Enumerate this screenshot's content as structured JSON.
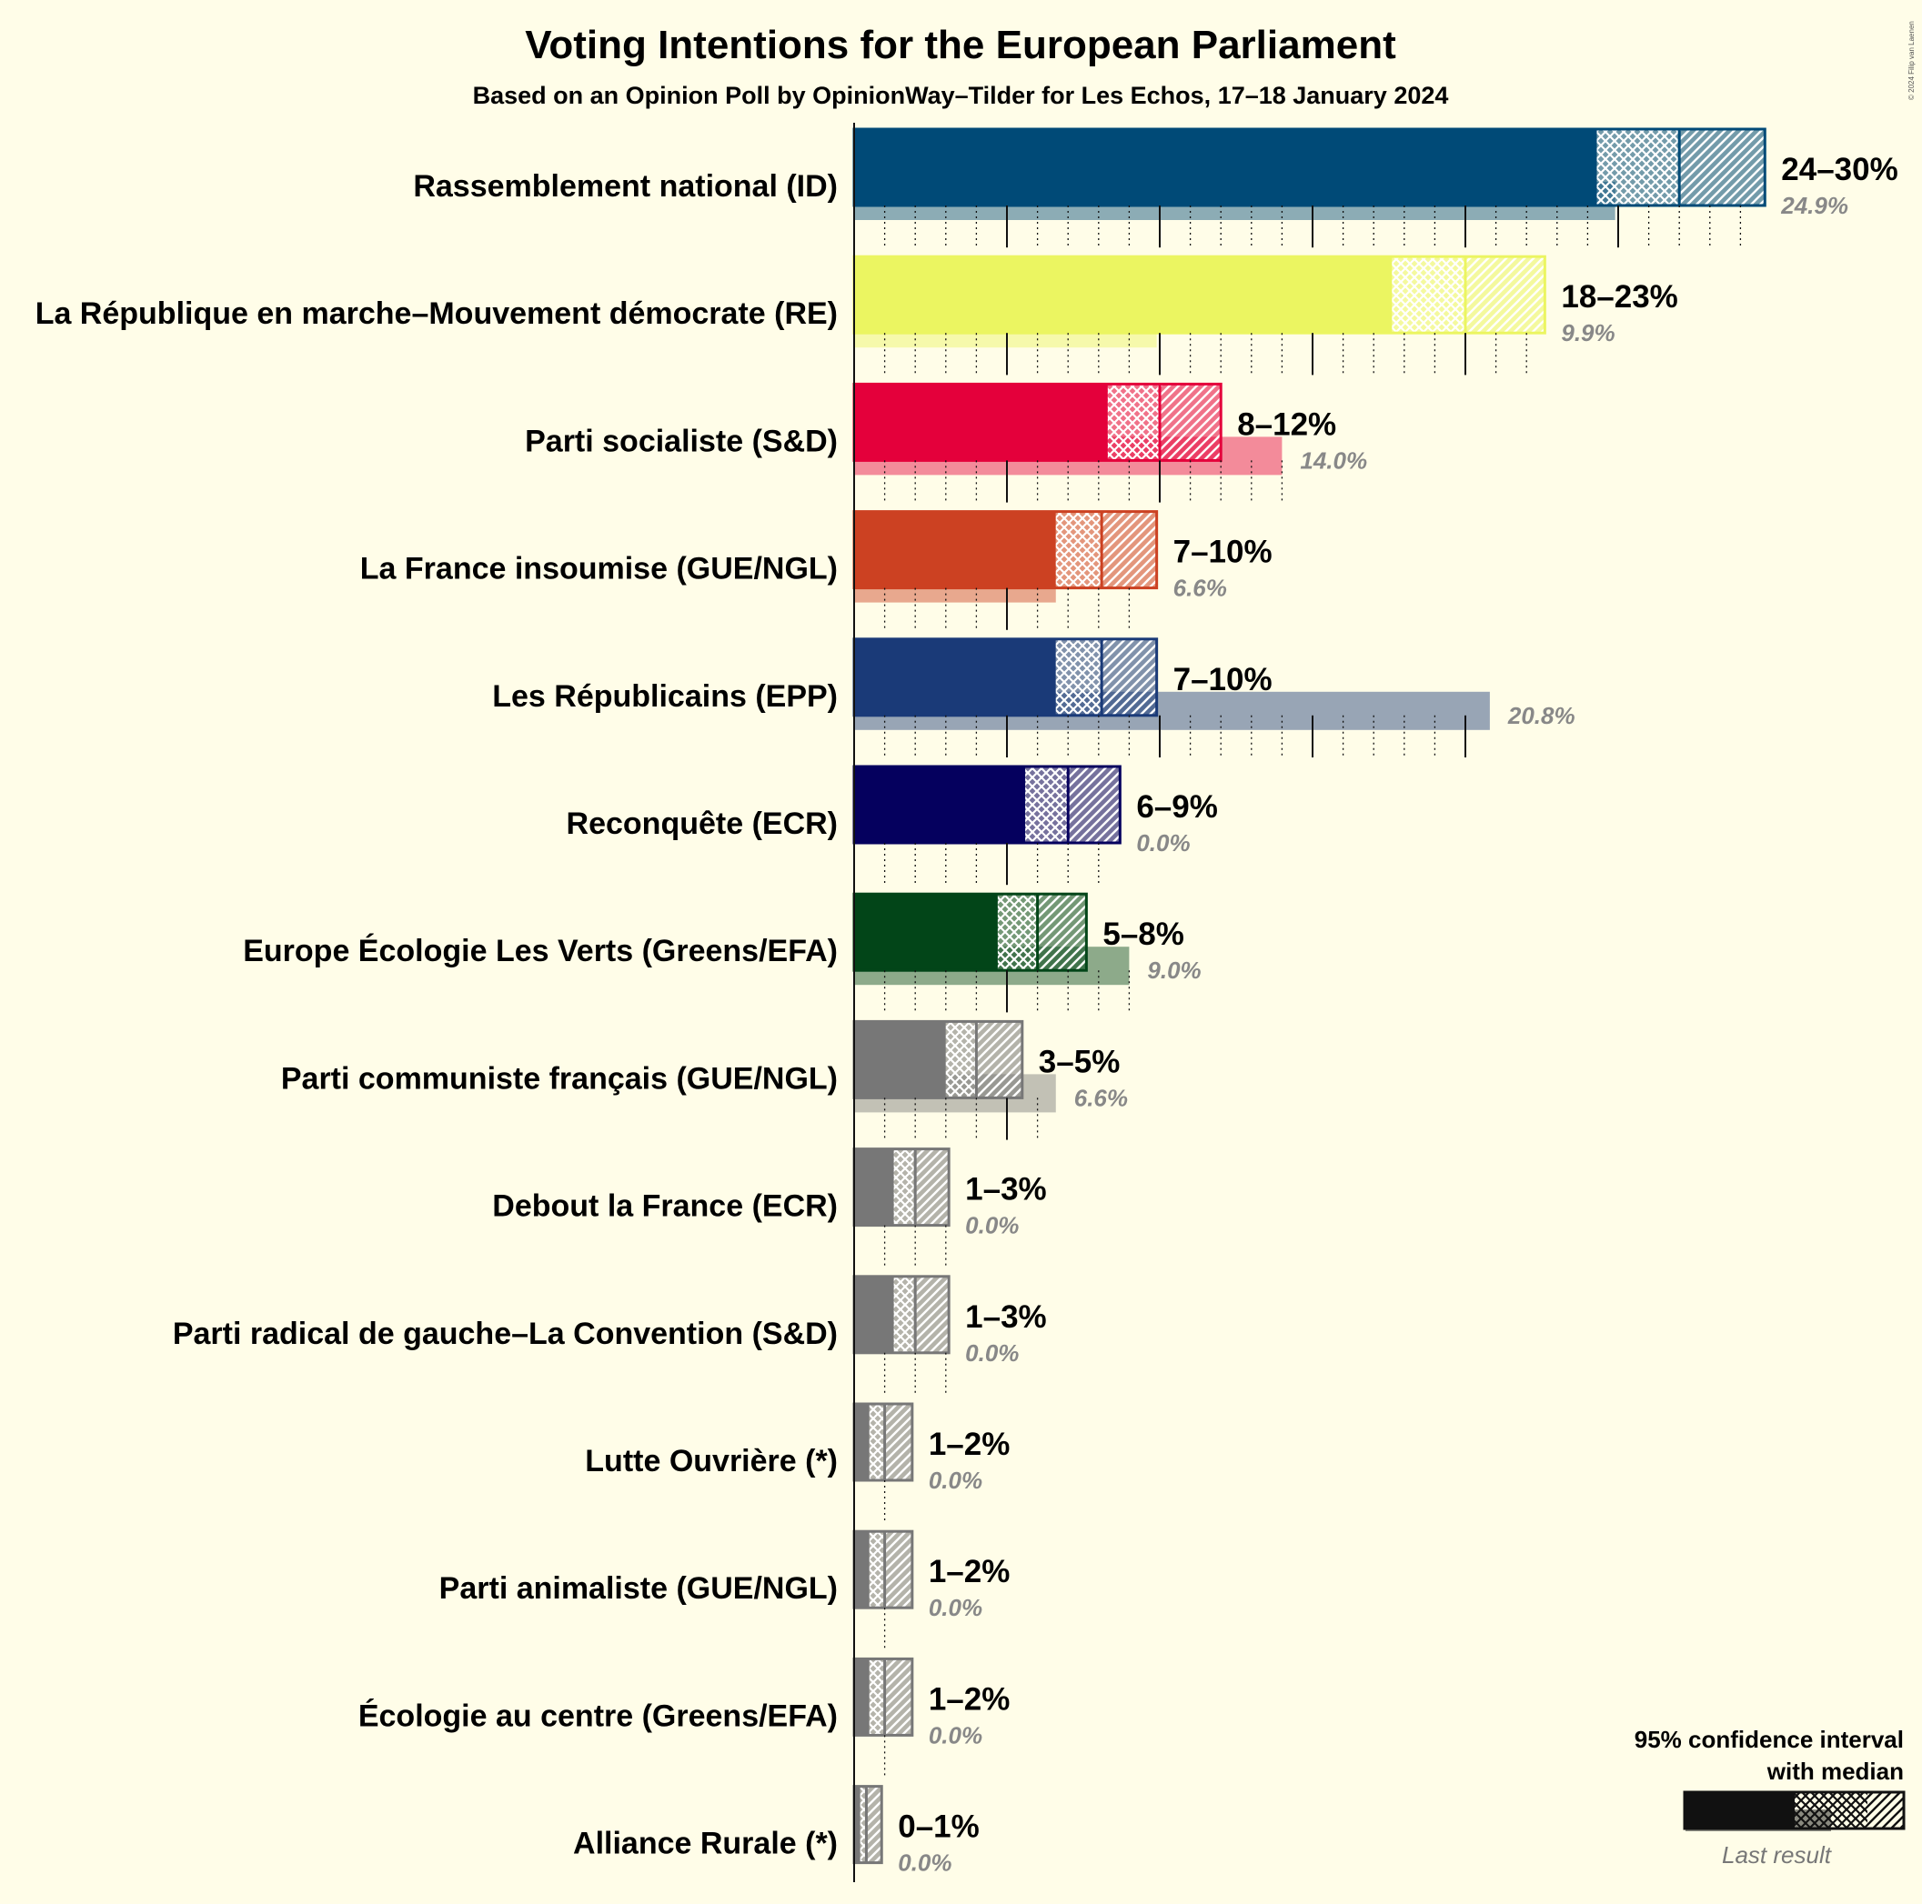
{
  "chart_data": {
    "type": "bar",
    "title": "Voting Intentions for the European Parliament",
    "subtitle": "Based on an Opinion Poll by OpinionWay–Tilder for Les Echos, 17–18 January 2024",
    "copyright": "© 2024 Filip van Laenen",
    "categories": [
      "Rassemblement national (ID)",
      "La République en marche–Mouvement démocrate (RE)",
      "Parti socialiste (S&D)",
      "La France insoumise (GUE/NGL)",
      "Les Républicains (EPP)",
      "Reconquête (ECR)",
      "Europe Écologie Les Verts (Greens/EFA)",
      "Parti communiste français (GUE/NGL)",
      "Debout la France (ECR)",
      "Parti radical de gauche–La Convention (S&D)",
      "Lutte Ouvrière (*)",
      "Parti animaliste (GUE/NGL)",
      "Écologie au centre (Greens/EFA)",
      "Alliance Rurale (*)"
    ],
    "series": [
      {
        "name": "95% confidence interval",
        "low": [
          24.3,
          17.6,
          8.3,
          6.6,
          6.6,
          5.6,
          4.7,
          3.0,
          1.3,
          1.3,
          0.5,
          0.5,
          0.5,
          0.2
        ],
        "median": [
          27.0,
          20.0,
          10.0,
          8.1,
          8.1,
          7.0,
          6.0,
          4.0,
          2.0,
          2.0,
          1.0,
          1.0,
          1.0,
          0.4
        ],
        "high": [
          29.8,
          22.6,
          12.0,
          9.9,
          9.9,
          8.7,
          7.6,
          5.5,
          3.1,
          3.1,
          1.9,
          1.9,
          1.9,
          0.9
        ]
      },
      {
        "name": "Last result",
        "values": [
          24.9,
          9.9,
          14.0,
          6.6,
          20.8,
          0.0,
          9.0,
          6.6,
          0.0,
          0.0,
          0.0,
          0.0,
          0.0,
          0.0
        ]
      }
    ],
    "range_labels": [
      "24–30%",
      "18–23%",
      "8–12%",
      "7–10%",
      "7–10%",
      "6–9%",
      "5–8%",
      "3–5%",
      "1–3%",
      "1–3%",
      "1–2%",
      "1–2%",
      "1–2%",
      "0–1%"
    ],
    "last_labels": [
      "24.9%",
      "9.9%",
      "14.0%",
      "6.6%",
      "20.8%",
      "0.0%",
      "9.0%",
      "6.6%",
      "0.0%",
      "0.0%",
      "0.0%",
      "0.0%",
      "0.0%",
      "0.0%"
    ],
    "colors": [
      "#004A77",
      "#EBF561",
      "#E4003B",
      "#CC4122",
      "#1A3A78",
      "#05005E",
      "#024518",
      "#777777",
      "#777777",
      "#777777",
      "#777777",
      "#777777",
      "#777777",
      "#777777"
    ],
    "xlim": [
      0,
      30
    ],
    "grid": true,
    "legend": {
      "position": "bottom-right",
      "line1": "95% confidence interval",
      "line2": "with median",
      "last_result": "Last result"
    }
  }
}
